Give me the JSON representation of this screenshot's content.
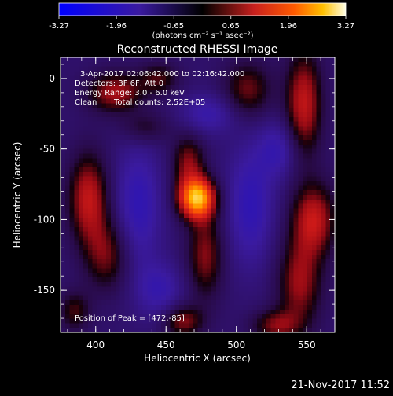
{
  "chart_data": {
    "type": "heatmap",
    "title": "Reconstructed RHESSI Image",
    "xlabel": "Heliocentric X (arcsec)",
    "ylabel": "Heliocentric Y (arcsec)",
    "xlim": [
      375,
      570
    ],
    "ylim": [
      -180,
      15
    ],
    "x_ticks": [
      "400",
      "450",
      "500",
      "550"
    ],
    "y_ticks": [
      "0",
      "-50",
      "-100",
      "-150"
    ],
    "colorbar": {
      "ticks": [
        "-3.27",
        "-1.96",
        "-0.65",
        "0.65",
        "1.96",
        "3.27"
      ],
      "min": -3.27,
      "max": 3.27,
      "units": "(photons cm⁻² s⁻¹ asec⁻²)"
    },
    "annotations": {
      "line1": "3-Apr-2017 02:06:42.000 to 02:16:42.000",
      "line2": "Detectors: 3F 6F, Att 0",
      "line3": "Energy Range: 3.0 - 6.0 keV",
      "line4_a": "Clean",
      "line4_b": "Total counts: 2.52E+05",
      "peak": "Position of Peak = [472,-85]"
    },
    "peak_position": [
      472,
      -85
    ],
    "components": [
      {
        "x": 472,
        "y": -85,
        "amp": 3.2,
        "sx": 9,
        "sy": 10
      },
      {
        "x": 466,
        "y": -60,
        "amp": 1.2,
        "sx": 8,
        "sy": 14
      },
      {
        "x": 478,
        "y": -125,
        "amp": 1.2,
        "sx": 9,
        "sy": 22
      },
      {
        "x": 414,
        "y": -10,
        "amp": 1.4,
        "sx": 14,
        "sy": 10
      },
      {
        "x": 445,
        "y": 0,
        "amp": 0.9,
        "sx": 10,
        "sy": 8
      },
      {
        "x": 435,
        "y": -35,
        "amp": 0.7,
        "sx": 12,
        "sy": 8
      },
      {
        "x": 508,
        "y": -8,
        "amp": 1.1,
        "sx": 12,
        "sy": 14
      },
      {
        "x": 548,
        "y": -18,
        "amp": 1.6,
        "sx": 9,
        "sy": 26
      },
      {
        "x": 395,
        "y": -85,
        "amp": 1.6,
        "sx": 10,
        "sy": 22
      },
      {
        "x": 408,
        "y": -125,
        "amp": 1.1,
        "sx": 11,
        "sy": 18
      },
      {
        "x": 555,
        "y": -100,
        "amp": 1.6,
        "sx": 11,
        "sy": 18
      },
      {
        "x": 545,
        "y": -145,
        "amp": 1.3,
        "sx": 11,
        "sy": 22
      },
      {
        "x": 528,
        "y": -175,
        "amp": 1.1,
        "sx": 12,
        "sy": 8
      },
      {
        "x": 462,
        "y": -172,
        "amp": 1.2,
        "sx": 10,
        "sy": 8
      },
      {
        "x": 385,
        "y": -165,
        "amp": 0.9,
        "sx": 8,
        "sy": 10
      },
      {
        "x": 430,
        "y": -90,
        "amp": -1.0,
        "sx": 12,
        "sy": 30
      },
      {
        "x": 510,
        "y": -90,
        "amp": -1.0,
        "sx": 12,
        "sy": 30
      },
      {
        "x": 480,
        "y": -25,
        "amp": -0.8,
        "sx": 14,
        "sy": 10
      },
      {
        "x": 530,
        "y": -50,
        "amp": -0.8,
        "sx": 10,
        "sy": 14
      },
      {
        "x": 445,
        "y": -150,
        "amp": -0.8,
        "sx": 12,
        "sy": 14
      }
    ]
  },
  "footer": {
    "timestamp": "21-Nov-2017 11:52"
  }
}
